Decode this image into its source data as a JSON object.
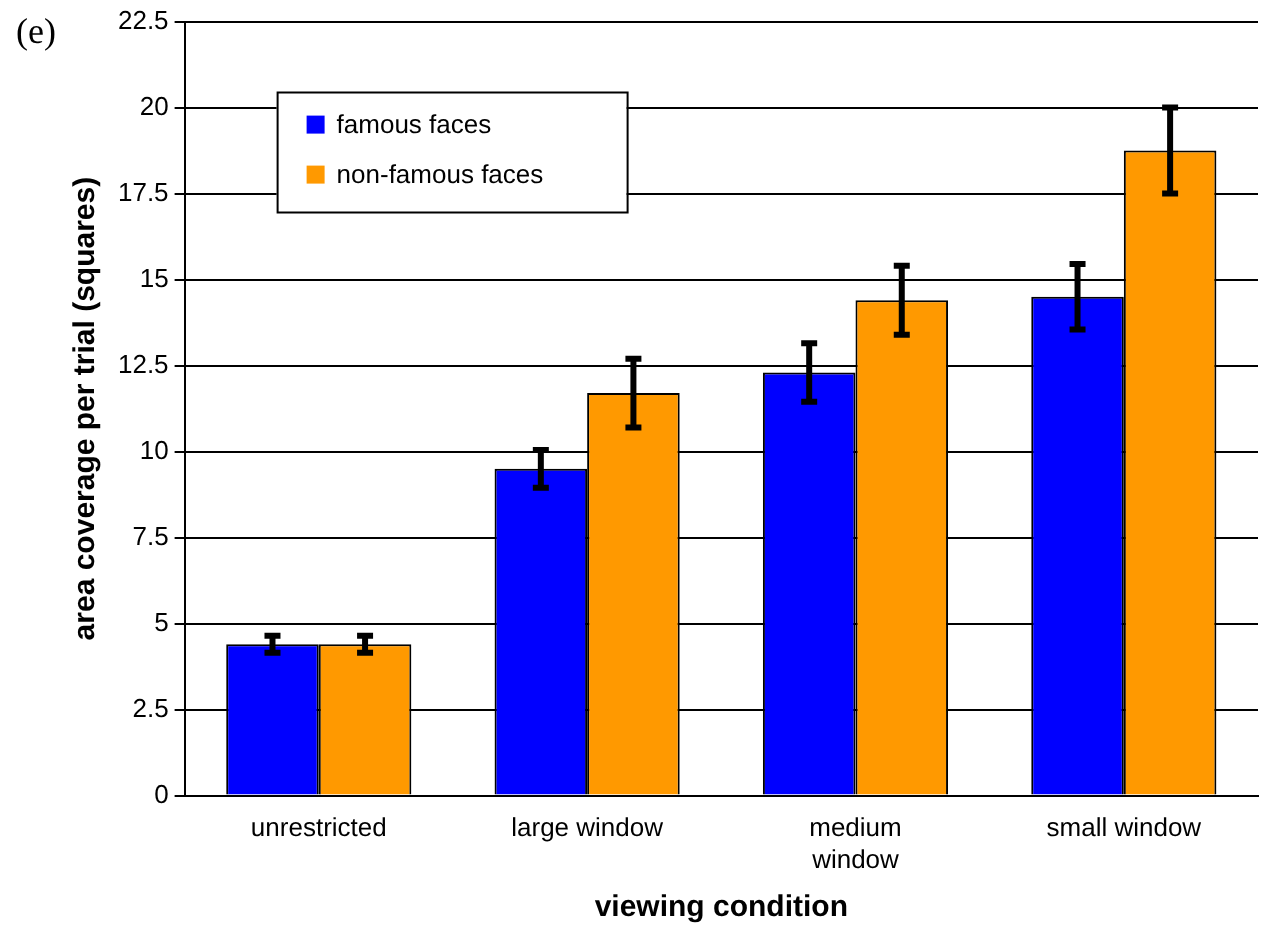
{
  "chart_data": {
    "type": "bar",
    "xlabel": "viewing condition",
    "ylabel": "area coverage per trial (squares)",
    "annotations": [
      "(e)"
    ],
    "categories": [
      "unrestricted",
      "large window",
      "medium window",
      "small window"
    ],
    "series": [
      {
        "name": "famous faces",
        "color": "#0000ff",
        "values": [
          4.4,
          9.5,
          12.3,
          14.5
        ],
        "errors": [
          0.25,
          0.55,
          0.85,
          0.95
        ]
      },
      {
        "name": "non-famous faces",
        "color": "#ff9900",
        "values": [
          4.4,
          11.7,
          14.4,
          18.75
        ],
        "errors": [
          0.25,
          1.0,
          1.0,
          1.25
        ]
      }
    ],
    "ylim": [
      0,
      22.5
    ],
    "yticks": [
      0,
      2.5,
      5,
      7.5,
      10,
      12.5,
      15,
      17.5,
      20,
      22.5
    ],
    "grid": "y",
    "legend": "top left"
  }
}
